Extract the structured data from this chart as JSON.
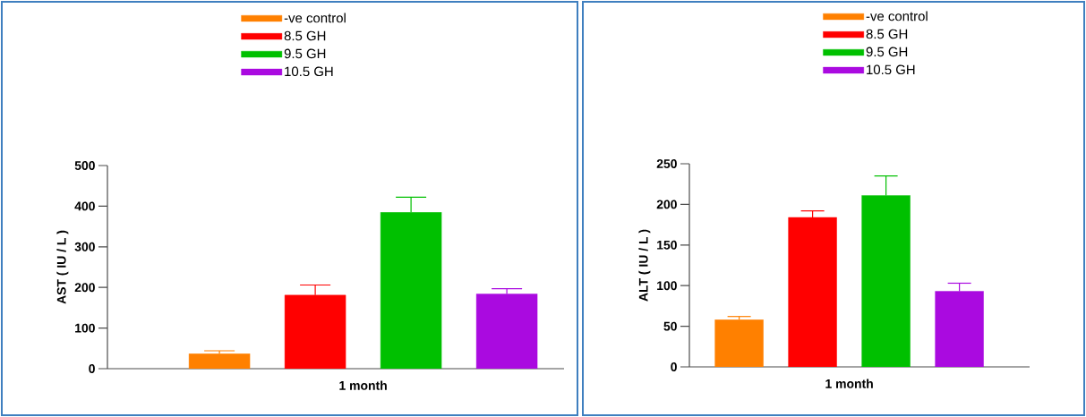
{
  "chart_data": [
    {
      "type": "bar",
      "ylabel": "AST ( IU / L )",
      "categories": [
        "1 month"
      ],
      "ylim": [
        0,
        500
      ],
      "yticks": [
        0,
        100,
        200,
        300,
        400,
        500
      ],
      "grid": false,
      "legend": "top",
      "series": [
        {
          "name": "-ve control",
          "color": "#ff8000",
          "values": [
            37
          ],
          "errors": [
            7
          ]
        },
        {
          "name": "8.5 GH",
          "color": "#ff0000",
          "values": [
            181
          ],
          "errors": [
            25
          ]
        },
        {
          "name": "9.5 GH",
          "color": "#00c000",
          "values": [
            385
          ],
          "errors": [
            37
          ]
        },
        {
          "name": "10.5 GH",
          "color": "#aa0ae0",
          "values": [
            184
          ],
          "errors": [
            13
          ]
        }
      ]
    },
    {
      "type": "bar",
      "ylabel": "ALT ( IU / L )",
      "categories": [
        "1 month"
      ],
      "ylim": [
        0,
        250
      ],
      "yticks": [
        0,
        50,
        100,
        150,
        200,
        250
      ],
      "grid": false,
      "legend": "top",
      "series": [
        {
          "name": "-ve control",
          "color": "#ff8000",
          "values": [
            58
          ],
          "errors": [
            4
          ]
        },
        {
          "name": "8.5 GH",
          "color": "#ff0000",
          "values": [
            184
          ],
          "errors": [
            8
          ]
        },
        {
          "name": "9.5 GH",
          "color": "#00c000",
          "values": [
            211
          ],
          "errors": [
            24
          ]
        },
        {
          "name": "10.5 GH",
          "color": "#aa0ae0",
          "values": [
            93
          ],
          "errors": [
            10
          ]
        }
      ]
    }
  ]
}
